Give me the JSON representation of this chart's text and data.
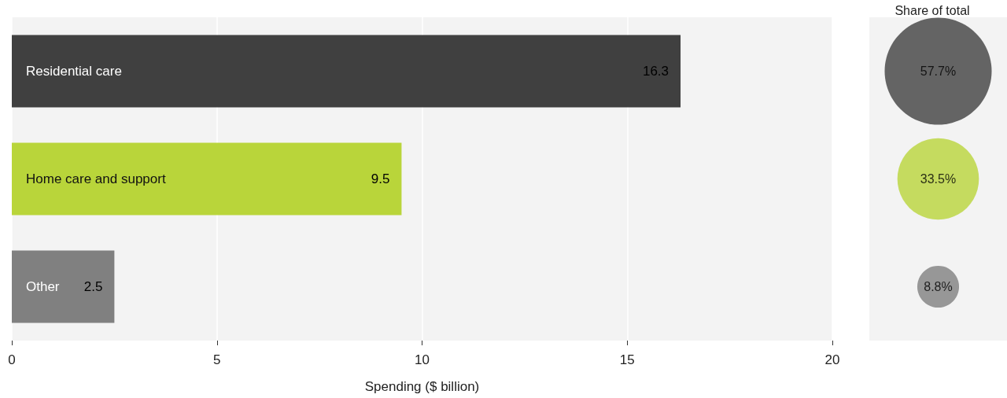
{
  "chart_data": [
    {
      "type": "bar",
      "orientation": "horizontal",
      "xlabel": "Spending ($ billion)",
      "categories": [
        "Residential care",
        "Home care and support",
        "Other"
      ],
      "values": [
        16.3,
        9.5,
        2.5
      ],
      "colors": [
        "#404040",
        "#b9d53a",
        "#808080"
      ],
      "xlim": [
        0,
        20
      ],
      "xticks": [
        0,
        5,
        10,
        15,
        20
      ],
      "grid": "x",
      "data_labels": true
    },
    {
      "type": "other",
      "title": "Share of total",
      "categories": [
        null,
        null,
        null
      ],
      "values": [
        57.7,
        33.5,
        8.8
      ],
      "value_labels": [
        "57.7%",
        "33.5%",
        "8.8%"
      ],
      "colors": [
        "#404040",
        "#b9d53a",
        "#808080"
      ]
    }
  ]
}
